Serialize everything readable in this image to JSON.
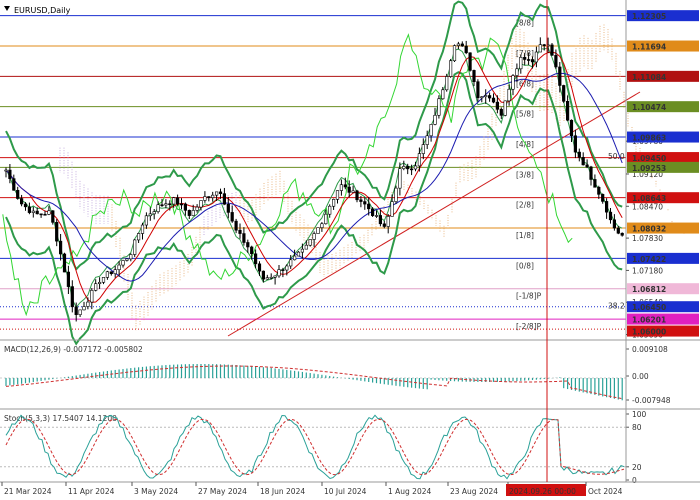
{
  "symbol_title": "EURUSD,Daily",
  "colors": {
    "price_axis_tag": "#1d2fc0",
    "bull": "#ffffff",
    "bear": "#000000",
    "ma_fast": "#d00000",
    "ma_slow": "#1c1cb0",
    "bollinger": "#2e9a4a",
    "chikou": "#33d633",
    "cloud": "#e4a86a",
    "cloud_alt": "#b79ad8",
    "trendline": "#d02020",
    "crosshair": "#d01010",
    "macd_hist": "#2aa198",
    "macd_signal": "#d03030"
  },
  "murrey_levels": [
    {
      "label": "[8/8]",
      "price": 1.12305,
      "color": "#1a2fd0"
    },
    {
      "label": "[7/8]",
      "price": 1.11694,
      "color": "#e08b1a"
    },
    {
      "label": "[6/8]",
      "price": 1.11084,
      "color": "#b01010"
    },
    {
      "label": "[5/8]",
      "price": 1.10474,
      "color": "#6b8e23"
    },
    {
      "label": "[4/8]",
      "price": 1.09863,
      "color": "#1a2fd0"
    },
    {
      "label": "[3/8]",
      "price": 1.09253,
      "color": "#6b8e23"
    },
    {
      "label": "[2/8]",
      "price": 1.08643,
      "color": "#d01010"
    },
    {
      "label": "[1/8]",
      "price": 1.08032,
      "color": "#e08b1a"
    },
    {
      "label": "[0/8]",
      "price": 1.07422,
      "color": "#1a2fd0"
    },
    {
      "label": "[-1/8]P",
      "price": 1.06812,
      "color": "#e0a0c8"
    },
    {
      "label": "[-2/8]P",
      "price": 1.06201,
      "color": "#e020c0"
    }
  ],
  "price_tags": [
    {
      "text": "1.12305",
      "bg": "#1a2fd0"
    },
    {
      "text": "1.11694",
      "bg": "#e08b1a"
    },
    {
      "text": "1.11084",
      "bg": "#b01010"
    },
    {
      "text": "1.10474",
      "bg": "#6b8e23"
    },
    {
      "text": "1.09863",
      "bg": "#1a2fd0"
    },
    {
      "text": "1.09450",
      "bg": "#d01010"
    },
    {
      "text": "1.09253",
      "bg": "#6b8e23"
    },
    {
      "text": "1.08643",
      "bg": "#d01010"
    },
    {
      "text": "1.08032",
      "bg": "#e08b1a"
    },
    {
      "text": "1.07422",
      "bg": "#1a2fd0"
    },
    {
      "text": "1.06812",
      "bg": "#f0b8d8"
    },
    {
      "text": "1.06450",
      "bg": "#1a2fd0"
    },
    {
      "text": "1.06201",
      "bg": "#e020c0"
    },
    {
      "text": "1.06000",
      "bg": "#d01010"
    }
  ],
  "price_axis_ticks": [
    "1.09780",
    "1.09120",
    "1.08470",
    "1.07830",
    "1.07180",
    "1.06540",
    "1.05890"
  ],
  "fib_labels": [
    {
      "text": "50.0",
      "price": 1.0948,
      "color": "#33b0c8"
    },
    {
      "text": "38.2",
      "price": 1.0647,
      "color": "#33b0c8"
    }
  ],
  "hlines": [
    {
      "price": 1.0945,
      "color": "#d01010",
      "style": "solid"
    },
    {
      "price": 1.0645,
      "color": "#1a2fd0",
      "style": "dotted"
    },
    {
      "price": 1.06,
      "color": "#d01010",
      "style": "dotted"
    }
  ],
  "macd": {
    "title": "MACD(12,26,9) -0.007172 -0.005802",
    "ticks": [
      "0.009108",
      "0.00",
      "-0.007948"
    ]
  },
  "stoch": {
    "title": "Stoch(5,3,3) 17.5407 14.1200",
    "ticks": [
      "100",
      "80",
      "20",
      "0"
    ]
  },
  "date_labels": [
    "21 Mar 2024",
    "11 Apr 2024",
    "3 May 2024",
    "27 May 2024",
    "18 Jun 2024",
    "10 Jul 2024",
    "1 Aug 2024",
    "23 Aug 2024",
    "2024.09.26 00:00",
    "Oct 2024"
  ],
  "crosshair_date": "2024.09.26 00:00"
}
